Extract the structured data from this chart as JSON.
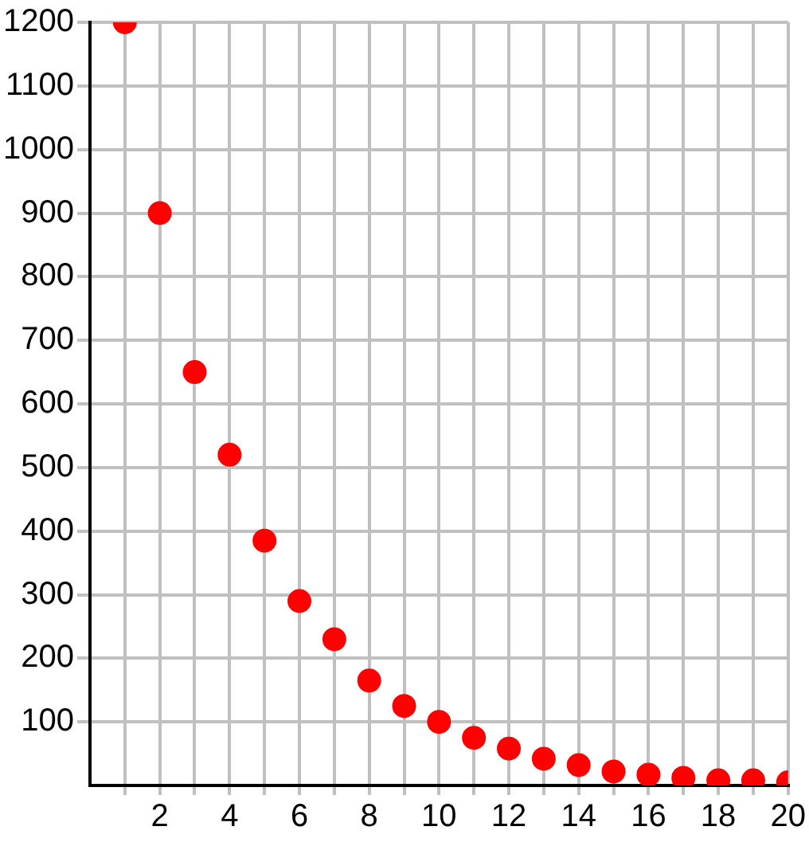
{
  "chart_data": {
    "type": "scatter",
    "x": [
      1,
      2,
      3,
      4,
      5,
      6,
      7,
      8,
      9,
      10,
      11,
      12,
      13,
      14,
      15,
      16,
      17,
      18,
      19,
      20
    ],
    "values": [
      1200,
      900,
      650,
      520,
      385,
      290,
      230,
      165,
      125,
      100,
      75,
      58,
      42,
      32,
      22,
      17,
      12,
      8,
      8,
      5
    ],
    "color": "#ff0000",
    "marker": "circle",
    "grid": true,
    "legend": false,
    "xlim": [
      0,
      20
    ],
    "xticks": [
      {
        "value": 1,
        "label": null
      },
      2,
      {
        "value": 3,
        "label": null
      },
      4,
      {
        "value": 5,
        "label": null
      },
      6,
      {
        "value": 7,
        "label": null
      },
      8,
      {
        "value": 9,
        "label": null
      },
      10,
      {
        "value": 11,
        "label": null
      },
      12,
      {
        "value": 13,
        "label": null
      },
      14,
      {
        "value": 15,
        "label": null
      },
      16,
      {
        "value": 17,
        "label": null
      },
      18,
      {
        "value": 19,
        "label": null
      },
      20
    ],
    "ylim": [
      0,
      1200
    ],
    "yticks": [
      100,
      200,
      300,
      400,
      500,
      600,
      700,
      800,
      900,
      1000,
      1100,
      1200
    ]
  }
}
